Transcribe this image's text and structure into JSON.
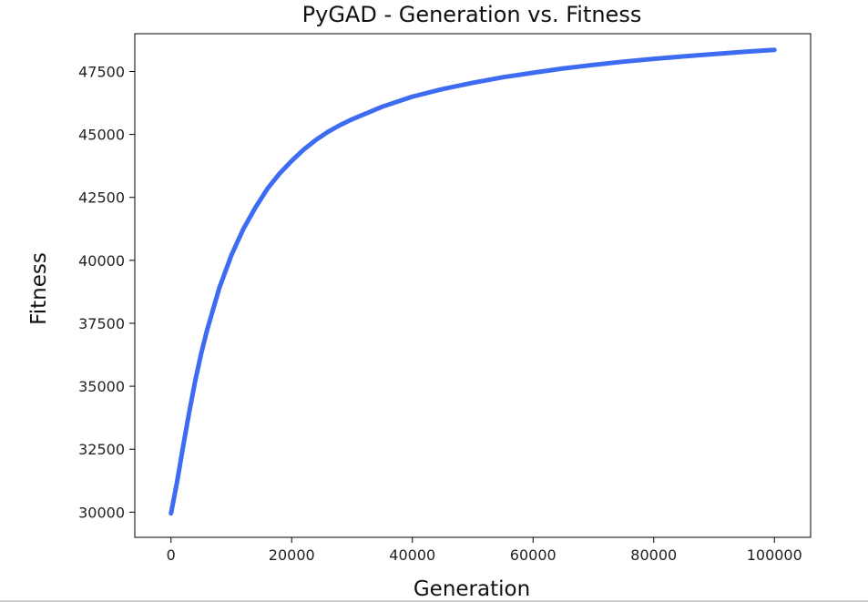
{
  "chart_data": {
    "type": "line",
    "title": "PyGAD - Generation vs. Fitness",
    "xlabel": "Generation",
    "ylabel": "Fitness",
    "xlim": [
      -6000,
      106000
    ],
    "ylim": [
      29000,
      49000
    ],
    "x_ticks": [
      0,
      20000,
      40000,
      60000,
      80000,
      100000
    ],
    "x_tick_labels": [
      "0",
      "20000",
      "40000",
      "60000",
      "80000",
      "100000"
    ],
    "y_ticks": [
      30000,
      32500,
      35000,
      37500,
      40000,
      42500,
      45000,
      47500
    ],
    "y_tick_labels": [
      "30000",
      "32500",
      "35000",
      "37500",
      "40000",
      "42500",
      "45000",
      "47500"
    ],
    "grid": false,
    "series": [
      {
        "color": "#3d6cf2",
        "x": [
          0,
          1000,
          2000,
          3000,
          4000,
          5000,
          6000,
          8000,
          10000,
          12000,
          14000,
          16000,
          18000,
          20000,
          22000,
          24000,
          26000,
          28000,
          30000,
          35000,
          40000,
          45000,
          50000,
          55000,
          60000,
          65000,
          70000,
          75000,
          80000,
          85000,
          90000,
          95000,
          100000
        ],
        "y": [
          29950,
          31200,
          32600,
          33950,
          35200,
          36300,
          37250,
          38900,
          40200,
          41250,
          42100,
          42850,
          43450,
          43950,
          44400,
          44780,
          45100,
          45370,
          45600,
          46100,
          46500,
          46800,
          47050,
          47270,
          47450,
          47620,
          47760,
          47890,
          48000,
          48100,
          48190,
          48280,
          48360
        ]
      }
    ]
  }
}
